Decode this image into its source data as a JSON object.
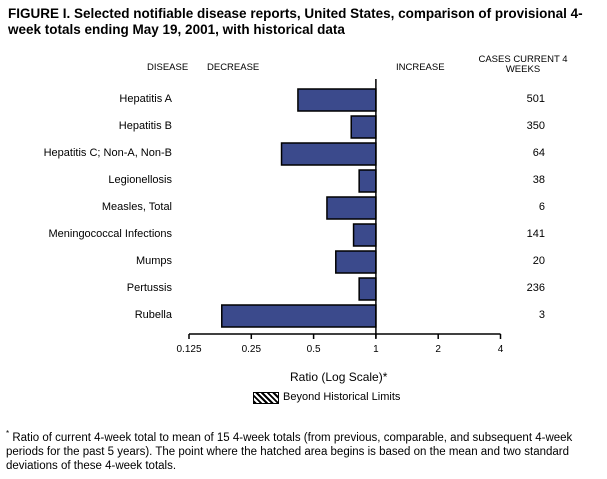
{
  "chart_data": {
    "type": "bar",
    "orientation": "horizontal",
    "title": "FIGURE I. Selected notifiable disease reports, United States, comparison of provisional 4-week totals ending May 19, 2001, with historical data",
    "column_headers": {
      "disease": "DISEASE",
      "decrease": "DECREASE",
      "increase": "INCREASE",
      "cases": "CASES CURRENT 4 WEEKS"
    },
    "categories": [
      "Hepatitis A",
      "Hepatitis B",
      "Hepatitis C; Non-A, Non-B",
      "Legionellosis",
      "Measles, Total",
      "Meningococcal Infections",
      "Mumps",
      "Pertussis",
      "Rubella"
    ],
    "values": [
      0.42,
      0.76,
      0.35,
      0.83,
      0.58,
      0.78,
      0.64,
      0.83,
      0.18
    ],
    "cases_current_4_weeks": [
      "501",
      "350",
      "64",
      "38",
      "6",
      "141",
      "20",
      "236",
      "3"
    ],
    "xlabel": "Ratio (Log Scale)*",
    "x_scale": "log2",
    "xlim": [
      0.125,
      4
    ],
    "xticks": [
      "0.125",
      "0.25",
      "0.5",
      "1",
      "2",
      "4"
    ],
    "baseline": 1,
    "bar_color": "#3b4a8c",
    "legend": {
      "label": "Beyond Historical Limits",
      "pattern": "hatched",
      "placement": "bottom-center"
    },
    "footnote": "Ratio of current 4-week total to mean of 15 4-week totals (from previous, comparable, and subsequent 4-week periods for the past 5 years). The point where the hatched area begins is based on the mean and two standard deviations of these 4-week totals.",
    "footnote_marker": "*"
  }
}
